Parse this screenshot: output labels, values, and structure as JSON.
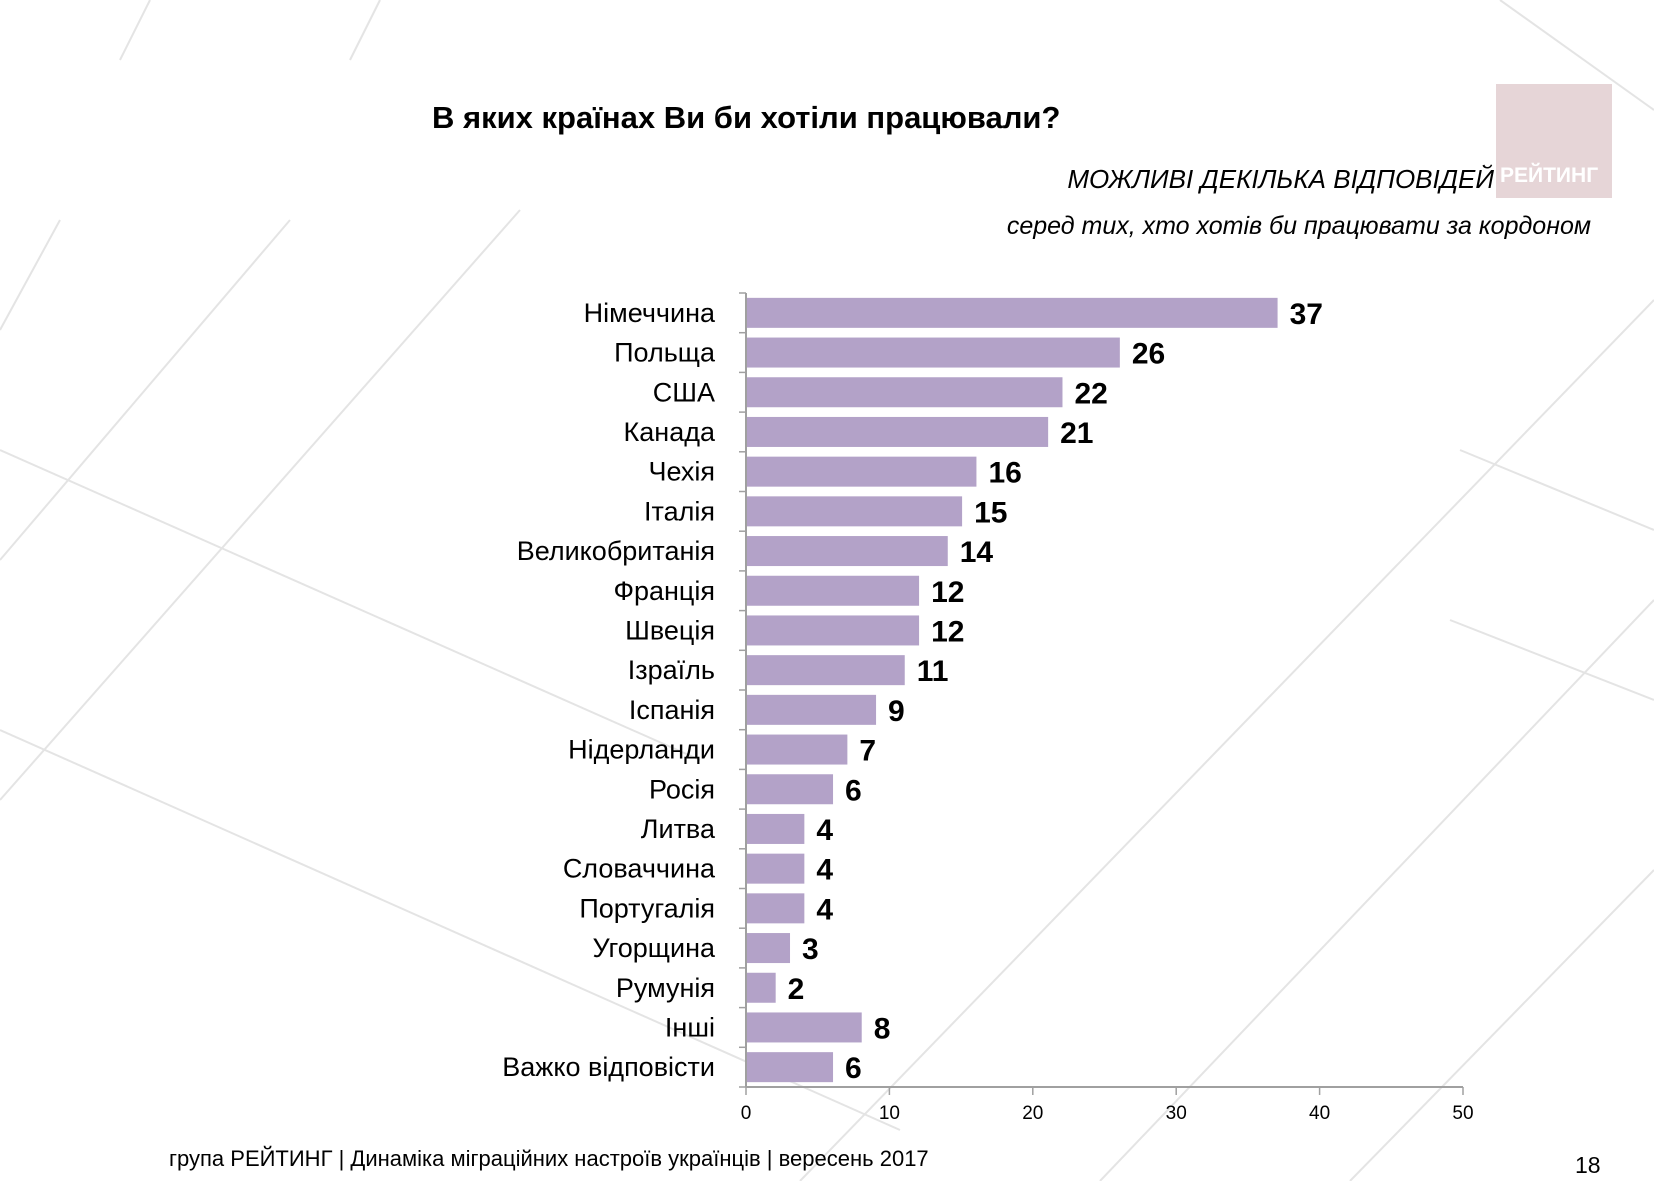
{
  "slide": {
    "title": "В яких країнах Ви би хотіли працювали?",
    "note_multiple": "МОЖЛИВІ ДЕКІЛЬКА ВІДПОВІДЕЙ",
    "note_base": "серед тих, хто хотів би працювати за кордоном",
    "logo_text": "РЕЙТИНГ",
    "footer": "група РЕЙТИНГ  | Динаміка міграційних настроїв українців  |  вересень 2017",
    "page_number": "18"
  },
  "colors": {
    "bar": "#b3a2c8",
    "axis": "#a0a0a0"
  },
  "chart_data": {
    "type": "bar",
    "orientation": "horizontal",
    "categories": [
      "Німеччина",
      "Польща",
      "США",
      "Канада",
      "Чехія",
      "Італія",
      "Великобританія",
      "Франція",
      "Швеція",
      "Ізраїль",
      "Іспанія",
      "Нідерланди",
      "Росія",
      "Литва",
      "Словаччина",
      "Португалія",
      "Угорщина",
      "Румунія",
      "Інші",
      "Важко відповісти"
    ],
    "values": [
      37,
      26,
      22,
      21,
      16,
      15,
      14,
      12,
      12,
      11,
      9,
      7,
      6,
      4,
      4,
      4,
      3,
      2,
      8,
      6
    ],
    "value_labels": [
      "37",
      "26",
      "22",
      "21",
      "16",
      "15",
      "14",
      "12",
      "12",
      "11",
      "9",
      "7",
      "6",
      "4",
      "4",
      "4",
      "3",
      "2",
      "8",
      "6"
    ],
    "xlim": [
      0,
      50
    ],
    "xticks": [
      "0",
      "10",
      "20",
      "30",
      "40",
      "50"
    ],
    "grid": false,
    "legend": "none"
  }
}
